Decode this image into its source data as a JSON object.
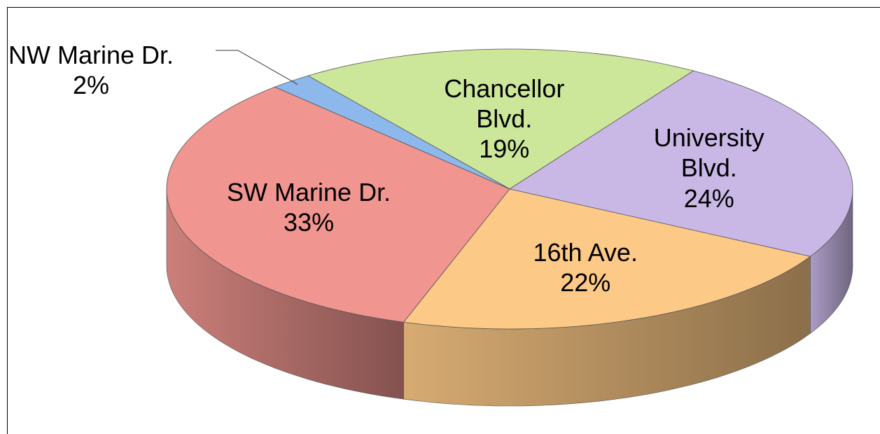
{
  "chart_data": {
    "type": "pie3d",
    "categories": [
      "Chancellor Blvd.",
      "University Blvd.",
      "16th Ave.",
      "SW Marine Dr.",
      "NW Marine Dr."
    ],
    "values": [
      19,
      24,
      22,
      33,
      2
    ],
    "value_labels": [
      "19%",
      "24%",
      "22%",
      "33%",
      "2%"
    ],
    "colors": [
      "#cce69a",
      "#c9b8e6",
      "#fdc986",
      "#f0958f",
      "#8db8ec"
    ]
  }
}
